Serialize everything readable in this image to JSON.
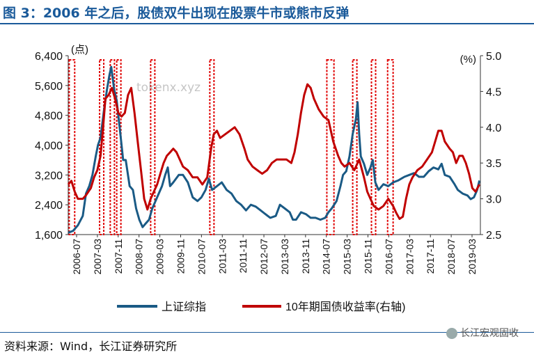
{
  "page": {
    "title": "图 3：2006 年之后，股债双牛出现在股票牛市或熊市反弹",
    "source": "资料来源：Wind，长江证券研究所",
    "brand": "长江宏观固收",
    "watermark": "tokenx.xyz"
  },
  "chart_data": {
    "type": "line",
    "title": "图 3：2006 年之后，股债双牛出现在股票牛市或熊市反弹",
    "ylabel_left": "(点)",
    "ylabel_right": "(%)",
    "ylim_left": [
      1600,
      6400
    ],
    "ylim_right": [
      2.5,
      5.0
    ],
    "left_ticks": [
      "1,600",
      "2,400",
      "3,200",
      "4,000",
      "4,800",
      "5,600",
      "6,400"
    ],
    "right_ticks": [
      "2.5",
      "3.0",
      "3.5",
      "4.0",
      "4.5",
      "5.0"
    ],
    "x_ticks": [
      "2006-07",
      "2007-03",
      "2007-11",
      "2008-07",
      "2009-03",
      "2009-11",
      "2010-07",
      "2011-03",
      "2011-11",
      "2012-07",
      "2013-03",
      "2013-11",
      "2014-07",
      "2015-03",
      "2015-11",
      "2016-07",
      "2017-03",
      "2017-11",
      "2018-07",
      "2019-03"
    ],
    "colors": {
      "stock": "#1a5a85",
      "bond": "#c00000",
      "box": "#e00000"
    },
    "series": [
      {
        "name": "上证综指",
        "axis": "left",
        "points": [
          [
            2006.5,
            1650
          ],
          [
            2006.65,
            1700
          ],
          [
            2006.8,
            1850
          ],
          [
            2006.95,
            2100
          ],
          [
            2007.05,
            2700
          ],
          [
            2007.15,
            2900
          ],
          [
            2007.25,
            3200
          ],
          [
            2007.35,
            3700
          ],
          [
            2007.42,
            4000
          ],
          [
            2007.5,
            4200
          ],
          [
            2007.6,
            4900
          ],
          [
            2007.7,
            5500
          ],
          [
            2007.78,
            5900
          ],
          [
            2007.83,
            6100
          ],
          [
            2007.92,
            5500
          ],
          [
            2008.0,
            5200
          ],
          [
            2008.1,
            4400
          ],
          [
            2008.2,
            3600
          ],
          [
            2008.28,
            3600
          ],
          [
            2008.4,
            2900
          ],
          [
            2008.5,
            2800
          ],
          [
            2008.6,
            2300
          ],
          [
            2008.7,
            2000
          ],
          [
            2008.8,
            1800
          ],
          [
            2008.9,
            1900
          ],
          [
            2009.0,
            2000
          ],
          [
            2009.1,
            2300
          ],
          [
            2009.2,
            2500
          ],
          [
            2009.3,
            2700
          ],
          [
            2009.4,
            2900
          ],
          [
            2009.5,
            3200
          ],
          [
            2009.58,
            3400
          ],
          [
            2009.65,
            2900
          ],
          [
            2009.75,
            3000
          ],
          [
            2009.92,
            3200
          ],
          [
            2010.05,
            3200
          ],
          [
            2010.2,
            3000
          ],
          [
            2010.35,
            2600
          ],
          [
            2010.5,
            2500
          ],
          [
            2010.62,
            2600
          ],
          [
            2010.75,
            2800
          ],
          [
            2010.85,
            3100
          ],
          [
            2010.95,
            2800
          ],
          [
            2011.1,
            2900
          ],
          [
            2011.25,
            3000
          ],
          [
            2011.4,
            2800
          ],
          [
            2011.55,
            2700
          ],
          [
            2011.7,
            2500
          ],
          [
            2011.85,
            2400
          ],
          [
            2012.0,
            2250
          ],
          [
            2012.15,
            2400
          ],
          [
            2012.3,
            2350
          ],
          [
            2012.45,
            2250
          ],
          [
            2012.6,
            2150
          ],
          [
            2012.75,
            2050
          ],
          [
            2012.92,
            2100
          ],
          [
            2013.05,
            2400
          ],
          [
            2013.2,
            2300
          ],
          [
            2013.35,
            2200
          ],
          [
            2013.45,
            2000
          ],
          [
            2013.55,
            2000
          ],
          [
            2013.7,
            2200
          ],
          [
            2013.85,
            2150
          ],
          [
            2014.0,
            2050
          ],
          [
            2014.15,
            2050
          ],
          [
            2014.3,
            2000
          ],
          [
            2014.45,
            2050
          ],
          [
            2014.55,
            2200
          ],
          [
            2014.65,
            2300
          ],
          [
            2014.8,
            2500
          ],
          [
            2014.92,
            2900
          ],
          [
            2015.0,
            3200
          ],
          [
            2015.1,
            3300
          ],
          [
            2015.2,
            3700
          ],
          [
            2015.3,
            4300
          ],
          [
            2015.4,
            4700
          ],
          [
            2015.45,
            5150
          ],
          [
            2015.5,
            4300
          ],
          [
            2015.55,
            3700
          ],
          [
            2015.65,
            3500
          ],
          [
            2015.75,
            3200
          ],
          [
            2015.85,
            3400
          ],
          [
            2015.92,
            3600
          ],
          [
            2016.0,
            3000
          ],
          [
            2016.1,
            2800
          ],
          [
            2016.25,
            2950
          ],
          [
            2016.4,
            2900
          ],
          [
            2016.55,
            3000
          ],
          [
            2016.7,
            3050
          ],
          [
            2016.9,
            3150
          ],
          [
            2017.05,
            3200
          ],
          [
            2017.2,
            3250
          ],
          [
            2017.35,
            3150
          ],
          [
            2017.5,
            3150
          ],
          [
            2017.65,
            3300
          ],
          [
            2017.8,
            3400
          ],
          [
            2017.95,
            3350
          ],
          [
            2018.05,
            3500
          ],
          [
            2018.15,
            3200
          ],
          [
            2018.3,
            3150
          ],
          [
            2018.45,
            2950
          ],
          [
            2018.55,
            2800
          ],
          [
            2018.7,
            2700
          ],
          [
            2018.85,
            2650
          ],
          [
            2018.95,
            2550
          ],
          [
            2019.05,
            2600
          ],
          [
            2019.15,
            2800
          ],
          [
            2019.22,
            3050
          ]
        ]
      },
      {
        "name": "10年期国债收益率(右轴)",
        "axis": "right",
        "points": [
          [
            2006.5,
            3.2
          ],
          [
            2006.6,
            3.25
          ],
          [
            2006.7,
            3.1
          ],
          [
            2006.8,
            3.0
          ],
          [
            2006.95,
            3.0
          ],
          [
            2007.05,
            3.05
          ],
          [
            2007.2,
            3.15
          ],
          [
            2007.3,
            3.3
          ],
          [
            2007.4,
            3.4
          ],
          [
            2007.5,
            3.6
          ],
          [
            2007.58,
            4.0
          ],
          [
            2007.65,
            4.4
          ],
          [
            2007.75,
            4.45
          ],
          [
            2007.85,
            4.55
          ],
          [
            2007.95,
            4.4
          ],
          [
            2008.05,
            4.2
          ],
          [
            2008.15,
            4.15
          ],
          [
            2008.25,
            4.2
          ],
          [
            2008.35,
            4.45
          ],
          [
            2008.45,
            4.55
          ],
          [
            2008.55,
            4.2
          ],
          [
            2008.65,
            3.8
          ],
          [
            2008.75,
            3.4
          ],
          [
            2008.85,
            3.0
          ],
          [
            2008.95,
            2.85
          ],
          [
            2009.05,
            3.0
          ],
          [
            2009.15,
            3.1
          ],
          [
            2009.25,
            3.2
          ],
          [
            2009.35,
            3.35
          ],
          [
            2009.45,
            3.5
          ],
          [
            2009.55,
            3.6
          ],
          [
            2009.65,
            3.65
          ],
          [
            2009.75,
            3.7
          ],
          [
            2009.85,
            3.65
          ],
          [
            2009.95,
            3.55
          ],
          [
            2010.05,
            3.45
          ],
          [
            2010.2,
            3.4
          ],
          [
            2010.35,
            3.3
          ],
          [
            2010.5,
            3.3
          ],
          [
            2010.65,
            3.2
          ],
          [
            2010.8,
            3.3
          ],
          [
            2010.92,
            3.7
          ],
          [
            2011.0,
            3.9
          ],
          [
            2011.1,
            3.95
          ],
          [
            2011.2,
            3.85
          ],
          [
            2011.35,
            3.9
          ],
          [
            2011.5,
            3.95
          ],
          [
            2011.65,
            4.0
          ],
          [
            2011.8,
            3.9
          ],
          [
            2011.95,
            3.7
          ],
          [
            2012.05,
            3.55
          ],
          [
            2012.2,
            3.45
          ],
          [
            2012.35,
            3.4
          ],
          [
            2012.5,
            3.35
          ],
          [
            2012.65,
            3.4
          ],
          [
            2012.8,
            3.5
          ],
          [
            2012.95,
            3.55
          ],
          [
            2013.1,
            3.55
          ],
          [
            2013.25,
            3.55
          ],
          [
            2013.4,
            3.5
          ],
          [
            2013.5,
            3.65
          ],
          [
            2013.6,
            3.9
          ],
          [
            2013.7,
            4.2
          ],
          [
            2013.8,
            4.45
          ],
          [
            2013.9,
            4.6
          ],
          [
            2014.0,
            4.55
          ],
          [
            2014.1,
            4.4
          ],
          [
            2014.25,
            4.25
          ],
          [
            2014.4,
            4.15
          ],
          [
            2014.55,
            4.1
          ],
          [
            2014.7,
            3.8
          ],
          [
            2014.85,
            3.6
          ],
          [
            2014.95,
            3.5
          ],
          [
            2015.05,
            3.45
          ],
          [
            2015.2,
            3.5
          ],
          [
            2015.35,
            3.4
          ],
          [
            2015.5,
            3.55
          ],
          [
            2015.65,
            3.3
          ],
          [
            2015.75,
            3.1
          ],
          [
            2015.85,
            3.0
          ],
          [
            2015.95,
            2.9
          ],
          [
            2016.1,
            2.85
          ],
          [
            2016.25,
            2.9
          ],
          [
            2016.4,
            3.0
          ],
          [
            2016.55,
            2.9
          ],
          [
            2016.65,
            2.8
          ],
          [
            2016.75,
            2.72
          ],
          [
            2016.85,
            2.75
          ],
          [
            2016.95,
            3.0
          ],
          [
            2017.05,
            3.2
          ],
          [
            2017.15,
            3.3
          ],
          [
            2017.3,
            3.4
          ],
          [
            2017.45,
            3.45
          ],
          [
            2017.6,
            3.55
          ],
          [
            2017.75,
            3.65
          ],
          [
            2017.85,
            3.8
          ],
          [
            2017.95,
            3.95
          ],
          [
            2018.05,
            3.95
          ],
          [
            2018.15,
            3.8
          ],
          [
            2018.3,
            3.7
          ],
          [
            2018.4,
            3.65
          ],
          [
            2018.5,
            3.5
          ],
          [
            2018.6,
            3.6
          ],
          [
            2018.7,
            3.6
          ],
          [
            2018.8,
            3.5
          ],
          [
            2018.9,
            3.35
          ],
          [
            2019.0,
            3.15
          ],
          [
            2019.1,
            3.1
          ],
          [
            2019.22,
            3.2
          ]
        ]
      }
    ],
    "highlight_periods": [
      [
        2006.53,
        2006.7
      ],
      [
        2007.47,
        2007.58
      ],
      [
        2007.8,
        2007.92
      ],
      [
        2008.0,
        2008.1
      ],
      [
        2009.05,
        2009.17
      ],
      [
        2010.88,
        2011.0
      ],
      [
        2014.5,
        2014.72
      ],
      [
        2015.3,
        2015.42
      ],
      [
        2015.88,
        2015.98
      ],
      [
        2016.38,
        2016.55
      ]
    ],
    "legend": [
      "上证综指",
      "10年期国债收益率(右轴)"
    ]
  }
}
